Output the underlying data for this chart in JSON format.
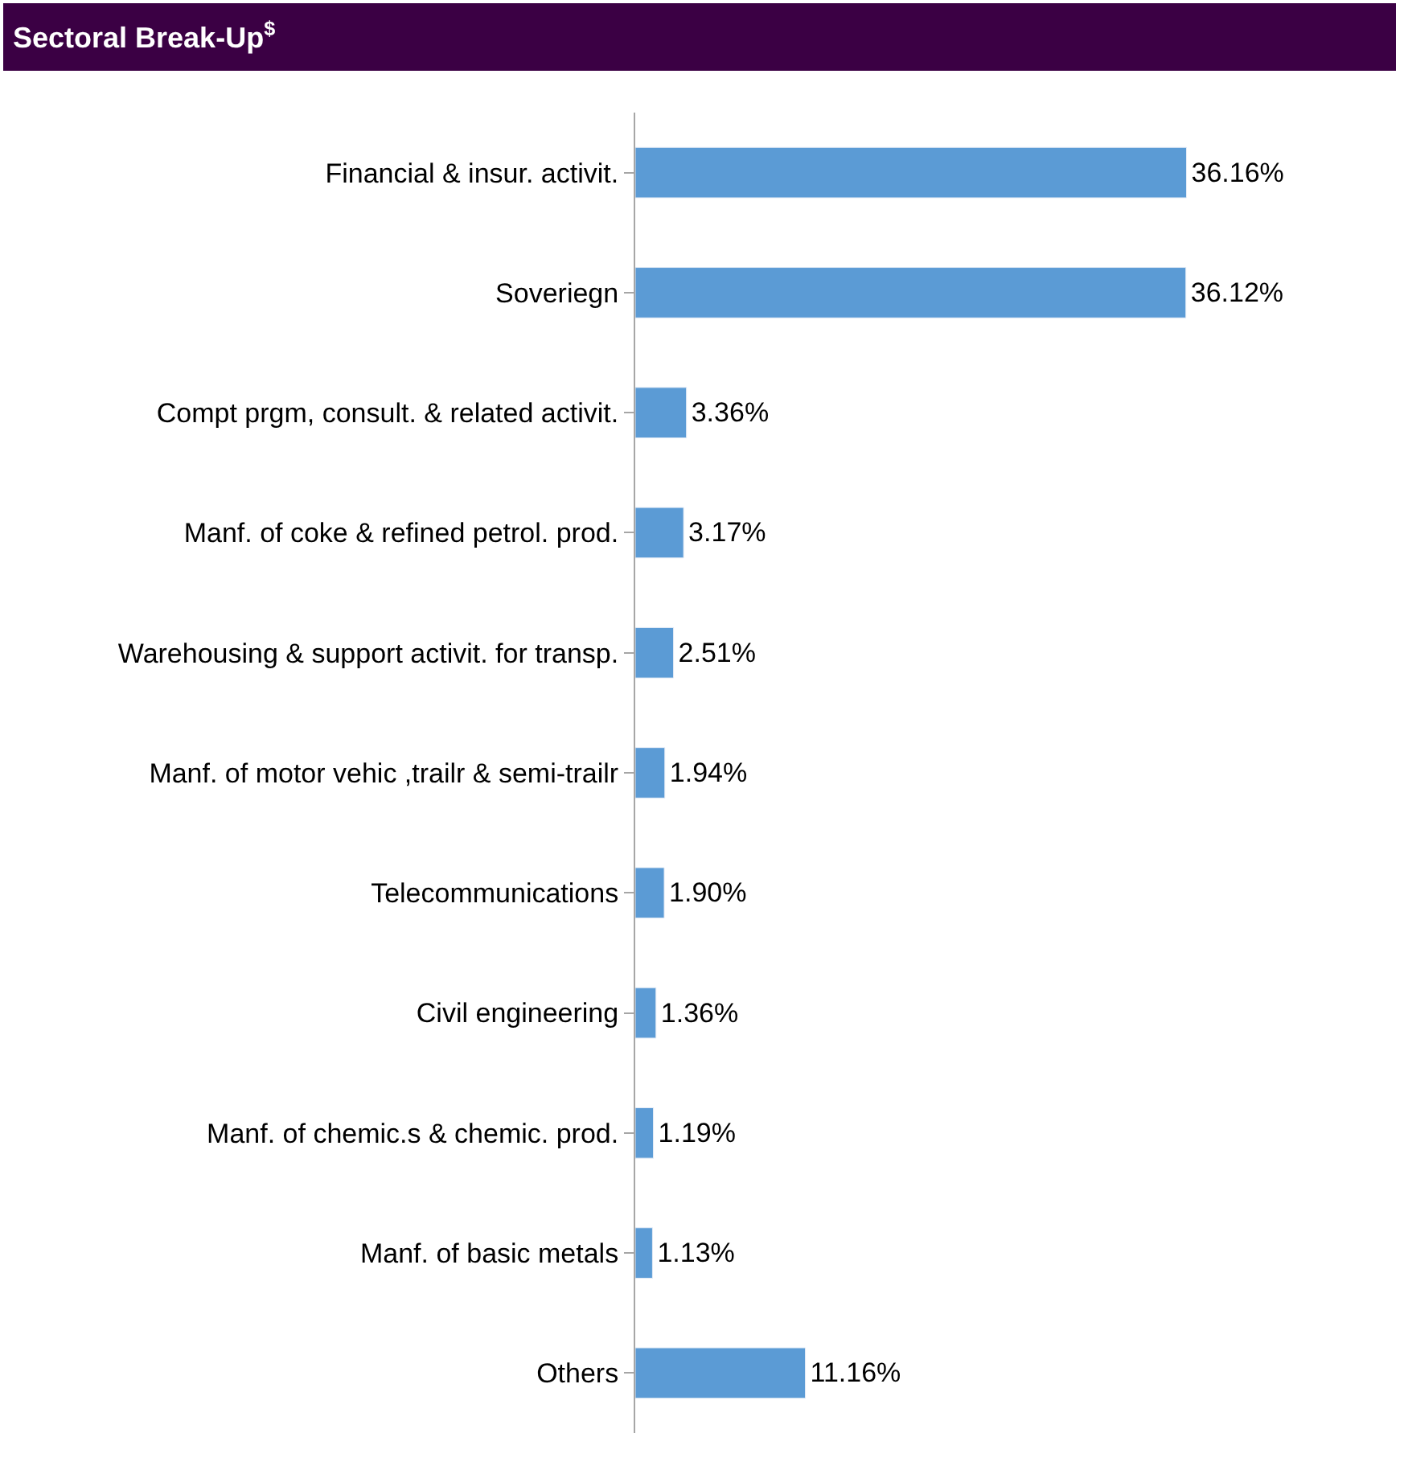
{
  "chart_data": {
    "type": "bar",
    "orientation": "horizontal",
    "title": "Sectoral Break-Up$^{$}$",
    "categories": [
      "Financial & insur. activit.",
      "Soveriegn",
      "Compt prgm, consult. & related activit.",
      "Manf. of coke & refined petrol. prod.",
      "Warehousing & support activit. for transp.",
      "Manf. of motor vehic ,trailr & semi-trailr",
      "Telecommunications",
      "Civil engineering",
      "Manf. of chemic.s & chemic. prod.",
      "Manf. of basic metals",
      "Others"
    ],
    "values": [
      36.16,
      36.12,
      3.36,
      3.17,
      2.51,
      1.94,
      1.9,
      1.36,
      1.19,
      1.13,
      11.16
    ],
    "value_labels": [
      "36.16%",
      "36.12%",
      "3.36%",
      "3.17%",
      "2.51%",
      "1.94%",
      "1.90%",
      "1.36%",
      "1.19%",
      "1.13%",
      "11.16%"
    ],
    "color": "#5b9bd5",
    "legend": false
  }
}
